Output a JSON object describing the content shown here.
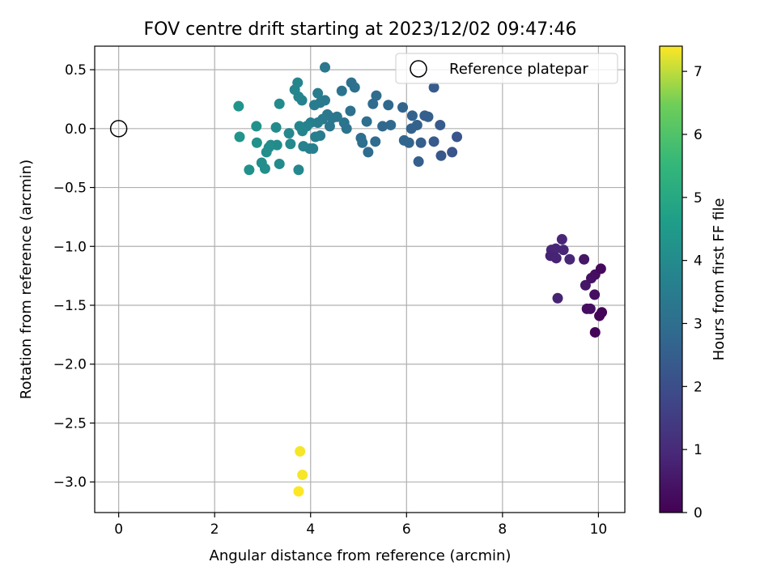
{
  "chart_data": {
    "type": "scatter",
    "title": "FOV centre drift starting at 2023/12/02 09:47:46",
    "xlabel": "Angular distance from reference (arcmin)",
    "ylabel": "Rotation from reference (arcmin)",
    "colorbar_label": "Hours from first FF file",
    "xlim": [
      -0.5,
      10.55
    ],
    "ylim": [
      -3.26,
      0.7
    ],
    "xticks": [
      0,
      2,
      4,
      6,
      8,
      10
    ],
    "xtick_labels": [
      "0",
      "2",
      "4",
      "6",
      "8",
      "10"
    ],
    "yticks": [
      0.5,
      0.0,
      -0.5,
      -1.0,
      -1.5,
      -2.0,
      -2.5,
      -3.0
    ],
    "ytick_labels": [
      "0.5",
      "0.0",
      "−0.5",
      "−1.0",
      "−1.5",
      "−2.0",
      "−2.5",
      "−3.0"
    ],
    "colorbar_range": [
      0,
      7.4
    ],
    "colorbar_ticks": [
      0,
      1,
      2,
      3,
      4,
      5,
      6,
      7
    ],
    "colorbar_tick_labels": [
      "0",
      "1",
      "2",
      "3",
      "4",
      "5",
      "6",
      "7"
    ],
    "colormap": "viridis",
    "grid": true,
    "legend": {
      "location": "upper-right",
      "entries": [
        "Reference platepar"
      ]
    },
    "reference_point": {
      "x": 0.0,
      "y": 0.0,
      "marker": "open-circle",
      "label": "Reference platepar"
    },
    "points": [
      {
        "x": 9.02,
        "y": -1.03,
        "c": 0.9
      },
      {
        "x": 9.11,
        "y": -1.02,
        "c": 0.9
      },
      {
        "x": 9.0,
        "y": -1.08,
        "c": 0.8
      },
      {
        "x": 9.12,
        "y": -1.1,
        "c": 0.8
      },
      {
        "x": 9.24,
        "y": -0.94,
        "c": 0.9
      },
      {
        "x": 9.27,
        "y": -1.03,
        "c": 0.9
      },
      {
        "x": 9.4,
        "y": -1.11,
        "c": 0.9
      },
      {
        "x": 9.15,
        "y": -1.44,
        "c": 0.8
      },
      {
        "x": 9.7,
        "y": -1.11,
        "c": 0.5
      },
      {
        "x": 9.73,
        "y": -1.33,
        "c": 0.5
      },
      {
        "x": 9.85,
        "y": -1.27,
        "c": 0.4
      },
      {
        "x": 9.93,
        "y": -1.24,
        "c": 0.3
      },
      {
        "x": 10.05,
        "y": -1.19,
        "c": 0.2
      },
      {
        "x": 9.92,
        "y": -1.41,
        "c": 0.3
      },
      {
        "x": 9.76,
        "y": -1.53,
        "c": 0.3
      },
      {
        "x": 9.83,
        "y": -1.53,
        "c": 0.3
      },
      {
        "x": 10.02,
        "y": -1.59,
        "c": 0.1
      },
      {
        "x": 10.07,
        "y": -1.56,
        "c": 0.1
      },
      {
        "x": 9.93,
        "y": -1.73,
        "c": 0.1
      },
      {
        "x": 7.05,
        "y": -0.07,
        "c": 2.2
      },
      {
        "x": 6.95,
        "y": -0.2,
        "c": 2.2
      },
      {
        "x": 6.72,
        "y": -0.23,
        "c": 2.3
      },
      {
        "x": 6.7,
        "y": 0.03,
        "c": 2.4
      },
      {
        "x": 6.57,
        "y": 0.35,
        "c": 2.4
      },
      {
        "x": 6.57,
        "y": -0.11,
        "c": 2.4
      },
      {
        "x": 6.45,
        "y": 0.1,
        "c": 2.5
      },
      {
        "x": 6.38,
        "y": 0.11,
        "c": 2.5
      },
      {
        "x": 6.3,
        "y": -0.12,
        "c": 2.5
      },
      {
        "x": 6.25,
        "y": -0.28,
        "c": 2.5
      },
      {
        "x": 6.22,
        "y": 0.03,
        "c": 2.6
      },
      {
        "x": 6.12,
        "y": 0.11,
        "c": 2.6
      },
      {
        "x": 6.1,
        "y": 0.0,
        "c": 2.6
      },
      {
        "x": 6.05,
        "y": -0.12,
        "c": 2.7
      },
      {
        "x": 5.95,
        "y": -0.1,
        "c": 2.7
      },
      {
        "x": 5.92,
        "y": 0.18,
        "c": 2.7
      },
      {
        "x": 5.67,
        "y": 0.03,
        "c": 2.8
      },
      {
        "x": 5.62,
        "y": 0.2,
        "c": 2.8
      },
      {
        "x": 5.5,
        "y": 0.02,
        "c": 2.8
      },
      {
        "x": 5.37,
        "y": 0.28,
        "c": 2.9
      },
      {
        "x": 5.35,
        "y": -0.11,
        "c": 2.9
      },
      {
        "x": 5.3,
        "y": 0.21,
        "c": 2.9
      },
      {
        "x": 5.2,
        "y": -0.2,
        "c": 2.9
      },
      {
        "x": 5.17,
        "y": 0.06,
        "c": 3.0
      },
      {
        "x": 5.08,
        "y": -0.12,
        "c": 3.0
      },
      {
        "x": 5.05,
        "y": -0.08,
        "c": 3.0
      },
      {
        "x": 4.92,
        "y": 0.35,
        "c": 3.1
      },
      {
        "x": 4.83,
        "y": 0.15,
        "c": 3.1
      },
      {
        "x": 4.85,
        "y": 0.39,
        "c": 3.1
      },
      {
        "x": 4.75,
        "y": 0.0,
        "c": 3.2
      },
      {
        "x": 4.7,
        "y": 0.05,
        "c": 3.2
      },
      {
        "x": 4.65,
        "y": 0.32,
        "c": 3.2
      },
      {
        "x": 4.55,
        "y": 0.1,
        "c": 3.3
      },
      {
        "x": 4.45,
        "y": 0.09,
        "c": 3.3
      },
      {
        "x": 4.4,
        "y": 0.02,
        "c": 3.3
      },
      {
        "x": 4.35,
        "y": 0.12,
        "c": 3.3
      },
      {
        "x": 4.3,
        "y": 0.52,
        "c": 3.3
      },
      {
        "x": 4.3,
        "y": 0.24,
        "c": 3.4
      },
      {
        "x": 4.25,
        "y": 0.08,
        "c": 3.4
      },
      {
        "x": 4.2,
        "y": 0.22,
        "c": 3.4
      },
      {
        "x": 4.15,
        "y": 0.3,
        "c": 3.5
      },
      {
        "x": 4.15,
        "y": 0.05,
        "c": 3.5
      },
      {
        "x": 4.08,
        "y": 0.2,
        "c": 3.5
      },
      {
        "x": 4.2,
        "y": -0.06,
        "c": 3.5
      },
      {
        "x": 4.1,
        "y": -0.07,
        "c": 3.6
      },
      {
        "x": 4.05,
        "y": -0.17,
        "c": 3.6
      },
      {
        "x": 4.0,
        "y": 0.05,
        "c": 3.6
      },
      {
        "x": 3.98,
        "y": -0.17,
        "c": 3.6
      },
      {
        "x": 3.92,
        "y": 0.02,
        "c": 3.7
      },
      {
        "x": 3.85,
        "y": -0.15,
        "c": 3.7
      },
      {
        "x": 3.82,
        "y": 0.24,
        "c": 3.7
      },
      {
        "x": 3.75,
        "y": 0.27,
        "c": 3.8
      },
      {
        "x": 3.73,
        "y": 0.39,
        "c": 3.8
      },
      {
        "x": 3.67,
        "y": 0.33,
        "c": 3.8
      },
      {
        "x": 3.77,
        "y": 0.02,
        "c": 3.8
      },
      {
        "x": 3.83,
        "y": -0.02,
        "c": 3.8
      },
      {
        "x": 3.55,
        "y": -0.04,
        "c": 3.9
      },
      {
        "x": 3.58,
        "y": -0.13,
        "c": 3.9
      },
      {
        "x": 3.75,
        "y": -0.35,
        "c": 3.9
      },
      {
        "x": 3.35,
        "y": 0.21,
        "c": 4.0
      },
      {
        "x": 3.28,
        "y": 0.01,
        "c": 4.0
      },
      {
        "x": 3.3,
        "y": -0.14,
        "c": 4.0
      },
      {
        "x": 3.35,
        "y": -0.3,
        "c": 4.0
      },
      {
        "x": 3.17,
        "y": -0.14,
        "c": 4.0
      },
      {
        "x": 3.13,
        "y": -0.16,
        "c": 4.1
      },
      {
        "x": 3.08,
        "y": -0.2,
        "c": 4.1
      },
      {
        "x": 3.05,
        "y": -0.34,
        "c": 4.1
      },
      {
        "x": 2.98,
        "y": -0.29,
        "c": 4.1
      },
      {
        "x": 2.88,
        "y": -0.12,
        "c": 4.2
      },
      {
        "x": 2.87,
        "y": 0.02,
        "c": 4.2
      },
      {
        "x": 2.72,
        "y": -0.35,
        "c": 4.2
      },
      {
        "x": 2.52,
        "y": -0.07,
        "c": 4.3
      },
      {
        "x": 2.5,
        "y": 0.19,
        "c": 4.3
      },
      {
        "x": 3.78,
        "y": -2.74,
        "c": 7.35
      },
      {
        "x": 3.83,
        "y": -2.94,
        "c": 7.35
      },
      {
        "x": 3.75,
        "y": -3.08,
        "c": 7.4
      }
    ]
  }
}
